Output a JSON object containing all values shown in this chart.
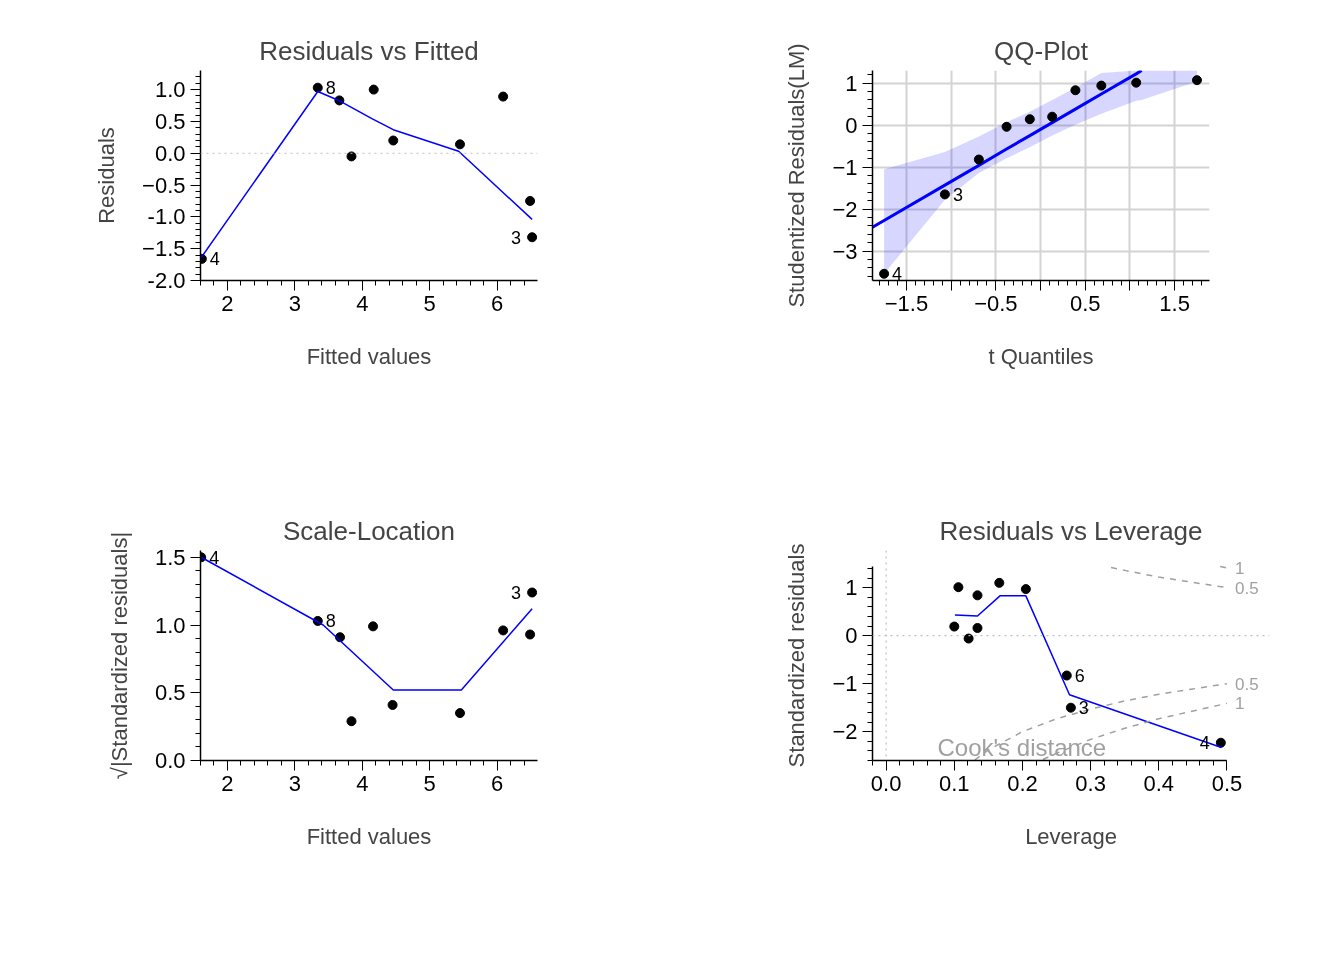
{
  "chart_data": [
    {
      "type": "scatter",
      "title": "Residuals vs Fitted",
      "xlabel": "Fitted values",
      "ylabel": "Residuals",
      "marker": "circle",
      "xlim": [
        1.6,
        6.6
      ],
      "ylim": [
        -2.0,
        1.3
      ],
      "xticks": [
        2,
        3,
        4,
        5,
        6
      ],
      "yticks": [
        {
          "value": 1,
          "label": "1.0"
        },
        0.5,
        {
          "value": 0,
          "label": "0.0"
        },
        -0.5,
        {
          "value": -1,
          "label": "-1.0"
        },
        -1.5,
        {
          "value": -2,
          "label": "-2.0"
        }
      ],
      "series": [
        {
          "color": "#000000",
          "x": [
            1.62,
            3.34,
            3.66,
            3.84,
            4.17,
            4.46,
            5.45,
            6.09,
            6.49,
            6.52
          ],
          "values": [
            -1.66,
            1.03,
            0.83,
            -0.05,
            1.0,
            0.2,
            0.14,
            0.89,
            -0.75,
            -1.32
          ]
        },
        {
          "type": "line",
          "marker": "none",
          "color": "#0000ff",
          "x": [
            1.61,
            3.34,
            3.67,
            4.15,
            4.46,
            5.43,
            6.52
          ],
          "values": [
            -1.64,
            0.97,
            0.82,
            0.54,
            0.37,
            0.03,
            -1.04
          ]
        }
      ],
      "ref_lines": [
        {
          "axis": "y",
          "value": 0,
          "line_style": "dotted",
          "color": "#bebebe"
        }
      ],
      "annotations": [
        {
          "text": "4",
          "x": 1.62,
          "y": -1.66
        },
        {
          "text": "8",
          "x": 3.34,
          "y": 1.03
        },
        {
          "text": "3",
          "x": 6.52,
          "y": -1.32
        }
      ]
    },
    {
      "type": "scatter",
      "title": "QQ-Plot",
      "xlabel": "t Quantiles",
      "ylabel": "Studentized Residuals(LM)",
      "marker": "circle",
      "grid": true,
      "xlim": [
        -1.88,
        1.89
      ],
      "ylim": [
        -3.7,
        1.3
      ],
      "xticks": [
        -1.5,
        {
          "value": -1,
          "label": null
        },
        -0.5,
        {
          "value": 0,
          "label": null
        },
        0.5,
        {
          "value": 1,
          "label": null
        },
        1.5
      ],
      "yticks": [
        1,
        0,
        -1,
        -2,
        -3
      ],
      "series": [
        {
          "type": "line",
          "marker": "none",
          "color": "#0000ff",
          "x": [
            -1.88,
            -1.75,
            -1.07,
            -0.69,
            -0.38,
            -0.12,
            0.13,
            0.39,
            0.68,
            1.07,
            1.13,
            1.75
          ],
          "values": [
            -2.43,
            -2.27,
            -1.43,
            -0.96,
            -0.57,
            -0.25,
            0.06,
            0.38,
            0.74,
            1.22,
            1.3,
            null
          ],
          "lower": [
            null,
            -3.54,
            -1.78,
            -1.14,
            -0.79,
            -0.53,
            -0.25,
            0.01,
            0.27,
            0.58,
            0.6,
            1.04
          ],
          "upper": [
            null,
            -1.05,
            -0.64,
            -0.27,
            0.07,
            0.32,
            0.6,
            0.89,
            1.24,
            1.3,
            1.3,
            1.3
          ]
        },
        {
          "color": "#000000",
          "x": [
            -1.75,
            -1.07,
            -0.69,
            -0.38,
            -0.12,
            0.13,
            0.39,
            0.68,
            1.07,
            1.75
          ],
          "values": [
            -3.54,
            -1.65,
            -0.82,
            -0.04,
            0.14,
            0.2,
            0.83,
            0.94,
            1.01,
            1.07
          ]
        }
      ],
      "annotations": [
        {
          "text": "4",
          "x": -1.75,
          "y": -3.54
        },
        {
          "text": "3",
          "x": -1.07,
          "y": -1.65
        }
      ]
    },
    {
      "type": "scatter",
      "title": "Scale-Location",
      "xlabel": "Fitted values",
      "ylabel": "√|Standardized residuals|",
      "marker": "circle",
      "xlim": [
        1.6,
        6.6
      ],
      "ylim": [
        0,
        1.55
      ],
      "xticks": [
        2,
        3,
        4,
        5,
        6
      ],
      "yticks": [
        {
          "value": 0,
          "label": "0.0"
        },
        0.5,
        {
          "value": 1,
          "label": "1.0"
        },
        1.5
      ],
      "series": [
        {
          "color": "#000000",
          "x": [
            1.61,
            3.34,
            3.67,
            3.84,
            4.16,
            4.45,
            5.45,
            6.09,
            6.49,
            6.52
          ],
          "values": [
            1.5,
            1.03,
            0.91,
            0.29,
            0.99,
            0.41,
            0.35,
            0.96,
            0.93,
            1.24
          ]
        },
        {
          "type": "line",
          "marker": "none",
          "color": "#0000ff",
          "x": [
            1.61,
            3.42,
            4.46,
            5.47,
            6.52
          ],
          "values": [
            1.5,
            1.0,
            0.52,
            0.52,
            1.12
          ]
        }
      ],
      "annotations": [
        {
          "text": "4",
          "x": 1.61,
          "y": 1.5
        },
        {
          "text": "8",
          "x": 3.34,
          "y": 1.03
        },
        {
          "text": "3",
          "x": 6.52,
          "y": 1.24
        }
      ]
    },
    {
      "type": "scatter",
      "title": "Residuals vs Leverage",
      "xlabel": "Leverage",
      "ylabel": "Standardized residuals",
      "marker": "circle",
      "xlim": [
        -0.02,
        0.5
      ],
      "ylim": [
        -2.6,
        1.45
      ],
      "xticks": [
        {
          "value": 0,
          "label": "0.0"
        },
        0.1,
        0.2,
        0.3,
        0.4,
        0.5
      ],
      "yticks": [
        1,
        0,
        -1,
        -2
      ],
      "series": [
        {
          "color": "#000000",
          "x": [
            0.1,
            0.106,
            0.121,
            0.134,
            0.134,
            0.166,
            0.205,
            0.265,
            0.271,
            0.491
          ],
          "values": [
            0.19,
            1.01,
            -0.06,
            0.84,
            0.16,
            1.1,
            0.97,
            -0.83,
            -1.5,
            -2.23
          ]
        },
        {
          "type": "line",
          "marker": "none",
          "color": "#0000ff",
          "x": [
            0.101,
            0.134,
            0.167,
            0.205,
            0.269,
            0.492
          ],
          "values": [
            0.43,
            0.41,
            0.83,
            0.83,
            -1.23,
            -2.33
          ]
        },
        {
          "type": "line",
          "marker": "none",
          "name": "0.5",
          "color": "#a0a0a0",
          "line_style": "dashed",
          "x": [
            0.33,
            0.35,
            0.4,
            0.45,
            0.5
          ],
          "values": [
            1.42,
            1.36,
            1.22,
            1.11,
            1.0
          ]
        },
        {
          "type": "line",
          "marker": "none",
          "name": "1",
          "color": "#a0a0a0",
          "line_style": "dashed",
          "x": [
            0.49,
            0.5
          ],
          "values": [
            1.44,
            1.41
          ]
        },
        {
          "type": "line",
          "marker": "none",
          "name": "0.5",
          "color": "#a0a0a0",
          "line_style": "dashed",
          "x": [
            0.13,
            0.15,
            0.2,
            0.25,
            0.3,
            0.35,
            0.4,
            0.45,
            0.5
          ],
          "values": [
            -2.59,
            -2.38,
            -2.0,
            -1.73,
            -1.53,
            -1.36,
            -1.22,
            -1.11,
            -1.0
          ]
        },
        {
          "type": "line",
          "marker": "none",
          "name": "1",
          "color": "#a0a0a0",
          "line_style": "dashed",
          "x": [
            0.23,
            0.25,
            0.3,
            0.35,
            0.4,
            0.45,
            0.5
          ],
          "values": [
            -2.58,
            -2.45,
            -2.16,
            -1.93,
            -1.73,
            -1.57,
            -1.41
          ]
        }
      ],
      "ref_lines": [
        {
          "axis": "y",
          "value": 0,
          "line_style": "dotted",
          "color": "#bebebe"
        },
        {
          "axis": "x",
          "value": 0,
          "line_style": "dotted",
          "color": "#bebebe"
        }
      ],
      "annotations": [
        "Cook's distance",
        {
          "text": "6",
          "x": 0.265,
          "y": -0.83
        },
        {
          "text": "3",
          "x": 0.271,
          "y": -1.5
        },
        {
          "text": "4",
          "x": 0.491,
          "y": -2.23
        }
      ]
    }
  ]
}
